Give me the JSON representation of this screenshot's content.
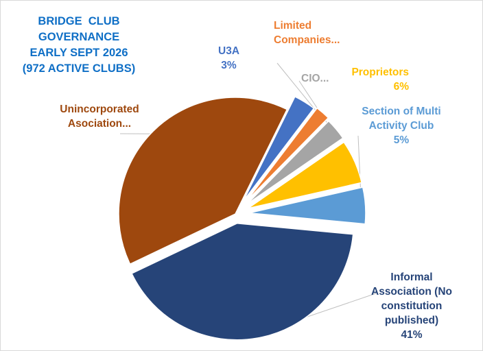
{
  "chart_data": {
    "type": "pie",
    "title_lines": [
      "BRIDGE  CLUB",
      "GOVERNANCE",
      "EARLY SEPT 2026",
      "(972 ACTIVE CLUBS)"
    ],
    "slices": [
      {
        "key": "informal",
        "value": 41,
        "color": "#264478",
        "label_lines": [
          "Informal",
          "Association (No",
          "constitution",
          "published)",
          "41%"
        ]
      },
      {
        "key": "unincorporated",
        "value": 39,
        "color": "#9e480e",
        "label_lines": [
          "Unincorporated",
          "Asociation..."
        ]
      },
      {
        "key": "u3a",
        "value": 3,
        "color": "#4472c4",
        "label_lines": [
          "U3A",
          "3%"
        ]
      },
      {
        "key": "limited",
        "value": 2,
        "color": "#ed7d31",
        "label_lines": [
          "Limited",
          "Companies..."
        ]
      },
      {
        "key": "cio",
        "value": 3,
        "color": "#a5a5a5",
        "label_lines": [
          "CIO..."
        ]
      },
      {
        "key": "proprietors",
        "value": 6,
        "color": "#ffc000",
        "label_lines": [
          "Proprietors",
          "6%"
        ]
      },
      {
        "key": "section",
        "value": 5,
        "color": "#5b9bd5",
        "label_lines": [
          "Section of Multi",
          "Activity Club",
          "5%"
        ]
      }
    ]
  }
}
